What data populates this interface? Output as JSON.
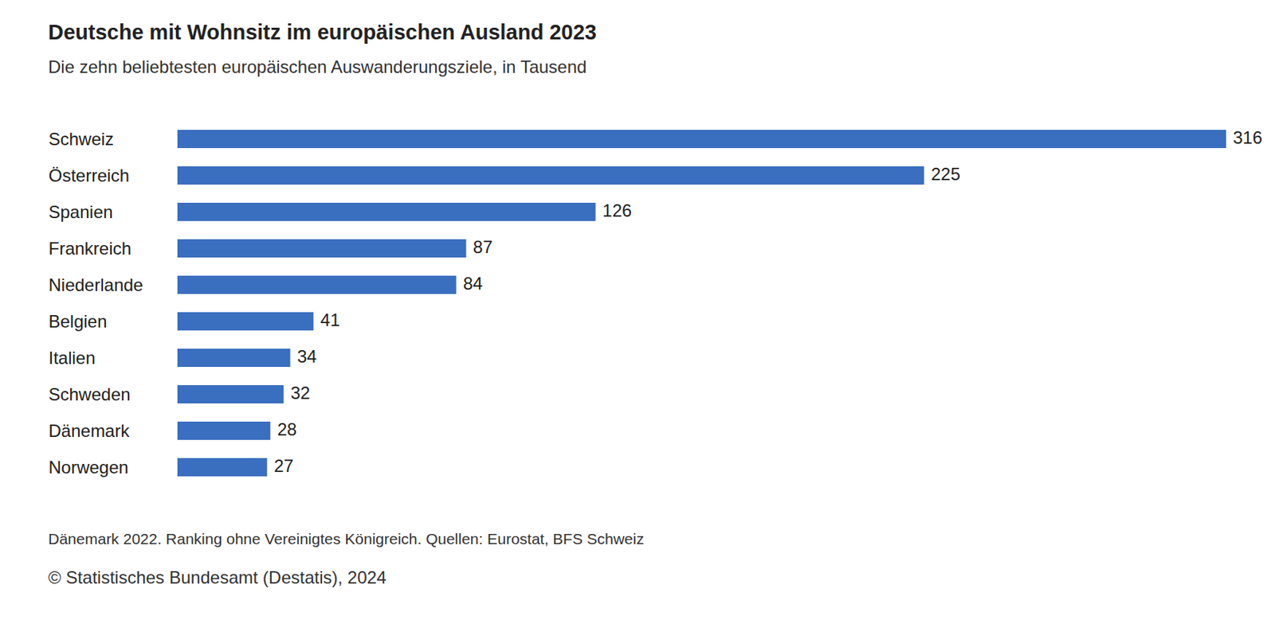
{
  "chart_data": {
    "type": "bar",
    "title": "Deutsche mit Wohnsitz im europäischen Ausland 2023",
    "subtitle": "Die zehn beliebtesten europäischen Auswanderungsziele, in Tausend",
    "categories": [
      "Schweiz",
      "Österreich",
      "Spanien",
      "Frankreich",
      "Niederlande",
      "Belgien",
      "Italien",
      "Schweden",
      "Dänemark",
      "Norwegen"
    ],
    "values": [
      316,
      225,
      126,
      87,
      84,
      41,
      34,
      32,
      28,
      27
    ],
    "color": "#3a6ebf",
    "orientation": "horizontal",
    "data_labels": true,
    "tick_labels": false,
    "note": "Dänemark 2022. Ranking ohne Vereinigtes Königreich. Quellen: Eurostat, BFS Schweiz",
    "copyright": "© Statistisches Bundesamt (Destatis), 2024"
  }
}
